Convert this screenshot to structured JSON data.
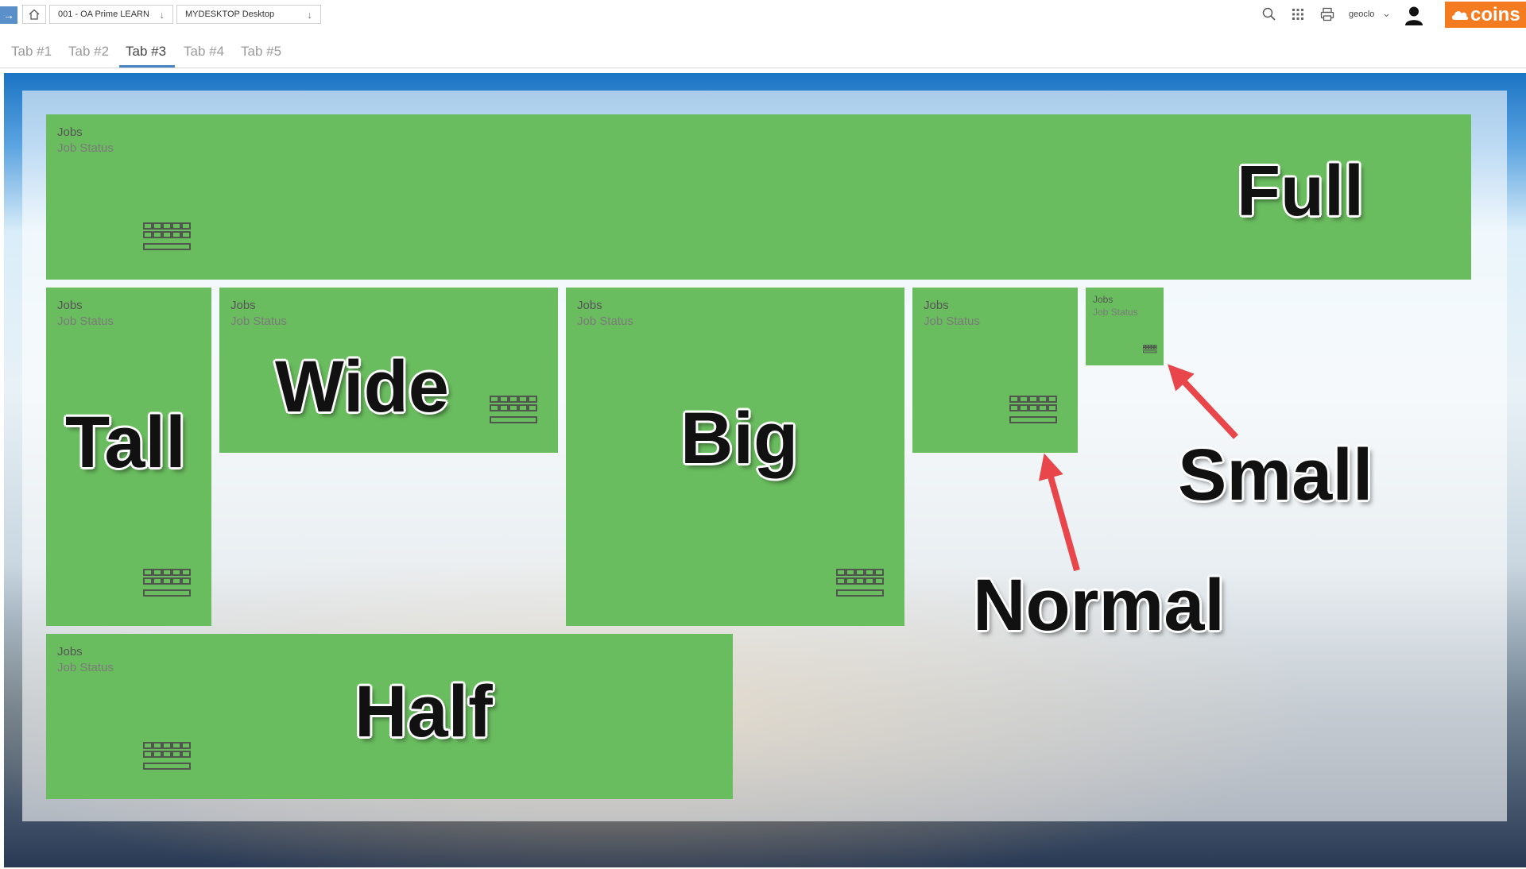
{
  "breadcrumb": {
    "items": [
      {
        "label": "001 - OA Prime LEARN"
      },
      {
        "label": "MYDESKTOP Desktop"
      }
    ]
  },
  "header": {
    "user": "geoclo",
    "brand": "coins",
    "icons": [
      "menu-toggle-icon",
      "home-icon",
      "search-icon",
      "apps-grid-icon",
      "print-icon",
      "user-avatar-icon"
    ]
  },
  "tabs": [
    {
      "label": "Tab #1",
      "active": false
    },
    {
      "label": "Tab #2",
      "active": false
    },
    {
      "label": "Tab #3",
      "active": true
    },
    {
      "label": "Tab #4",
      "active": false
    },
    {
      "label": "Tab #5",
      "active": false
    }
  ],
  "tiles": [
    {
      "title": "Jobs",
      "subtitle": "Job Status",
      "size": "Full"
    },
    {
      "title": "Jobs",
      "subtitle": "Job Status",
      "size": "Tall"
    },
    {
      "title": "Jobs",
      "subtitle": "Job Status",
      "size": "Wide"
    },
    {
      "title": "Jobs",
      "subtitle": "Job Status",
      "size": "Big"
    },
    {
      "title": "Jobs",
      "subtitle": "Job Status",
      "size": "Normal"
    },
    {
      "title": "Jobs",
      "subtitle": "Job Status",
      "size": "Small"
    },
    {
      "title": "Jobs",
      "subtitle": "Job Status",
      "size": "Half"
    }
  ],
  "annotations": [
    "Full",
    "Tall",
    "Wide",
    "Big",
    "Normal",
    "Small",
    "Half"
  ],
  "colors": {
    "tile_green": "#6abd5f",
    "brand_orange": "#f47b20",
    "tab_active_underline": "#4a86c5",
    "annotation_arrow": "#e8464a"
  }
}
